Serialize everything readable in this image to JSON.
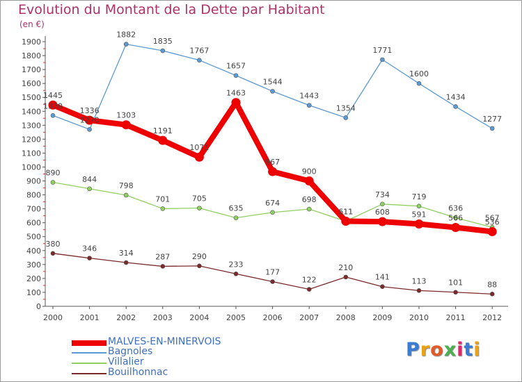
{
  "title": "Evolution du Montant de la Dette par Habitant",
  "unit": "(en €)",
  "logo_text": "Proxiti",
  "chart_data": {
    "type": "line",
    "title": "Evolution du Montant de la Dette par Habitant",
    "ylabel": "(en €)",
    "xlabel": "",
    "ylim": [
      0,
      1900
    ],
    "ystep": 100,
    "grid": false,
    "legend_position": "bottom-left",
    "x": [
      "2000",
      "2001",
      "2002",
      "2003",
      "2004",
      "2005",
      "2006",
      "2007",
      "2008",
      "2009",
      "2010",
      "2011",
      "2012"
    ],
    "series": [
      {
        "name": "MALVES-EN-MINERVOIS",
        "color": "#ee0000",
        "width": "thick",
        "values": [
          1445,
          1336,
          1303,
          1191,
          1071,
          1463,
          967,
          900,
          611,
          608,
          591,
          566,
          536
        ]
      },
      {
        "name": "Bagnoles",
        "color": "#5b9ad5",
        "width": "thin",
        "values": [
          1370,
          1270,
          1882,
          1835,
          1767,
          1657,
          1544,
          1443,
          1354,
          1771,
          1600,
          1434,
          1277
        ]
      },
      {
        "name": "Villalier",
        "color": "#90d060",
        "width": "thin",
        "values": [
          890,
          844,
          798,
          701,
          705,
          635,
          674,
          698,
          611,
          734,
          719,
          636,
          567
        ]
      },
      {
        "name": "Bouilhonnac",
        "color": "#7a2a2a",
        "width": "thin",
        "values": [
          380,
          346,
          314,
          287,
          290,
          233,
          177,
          122,
          210,
          141,
          113,
          101,
          88
        ]
      }
    ]
  }
}
